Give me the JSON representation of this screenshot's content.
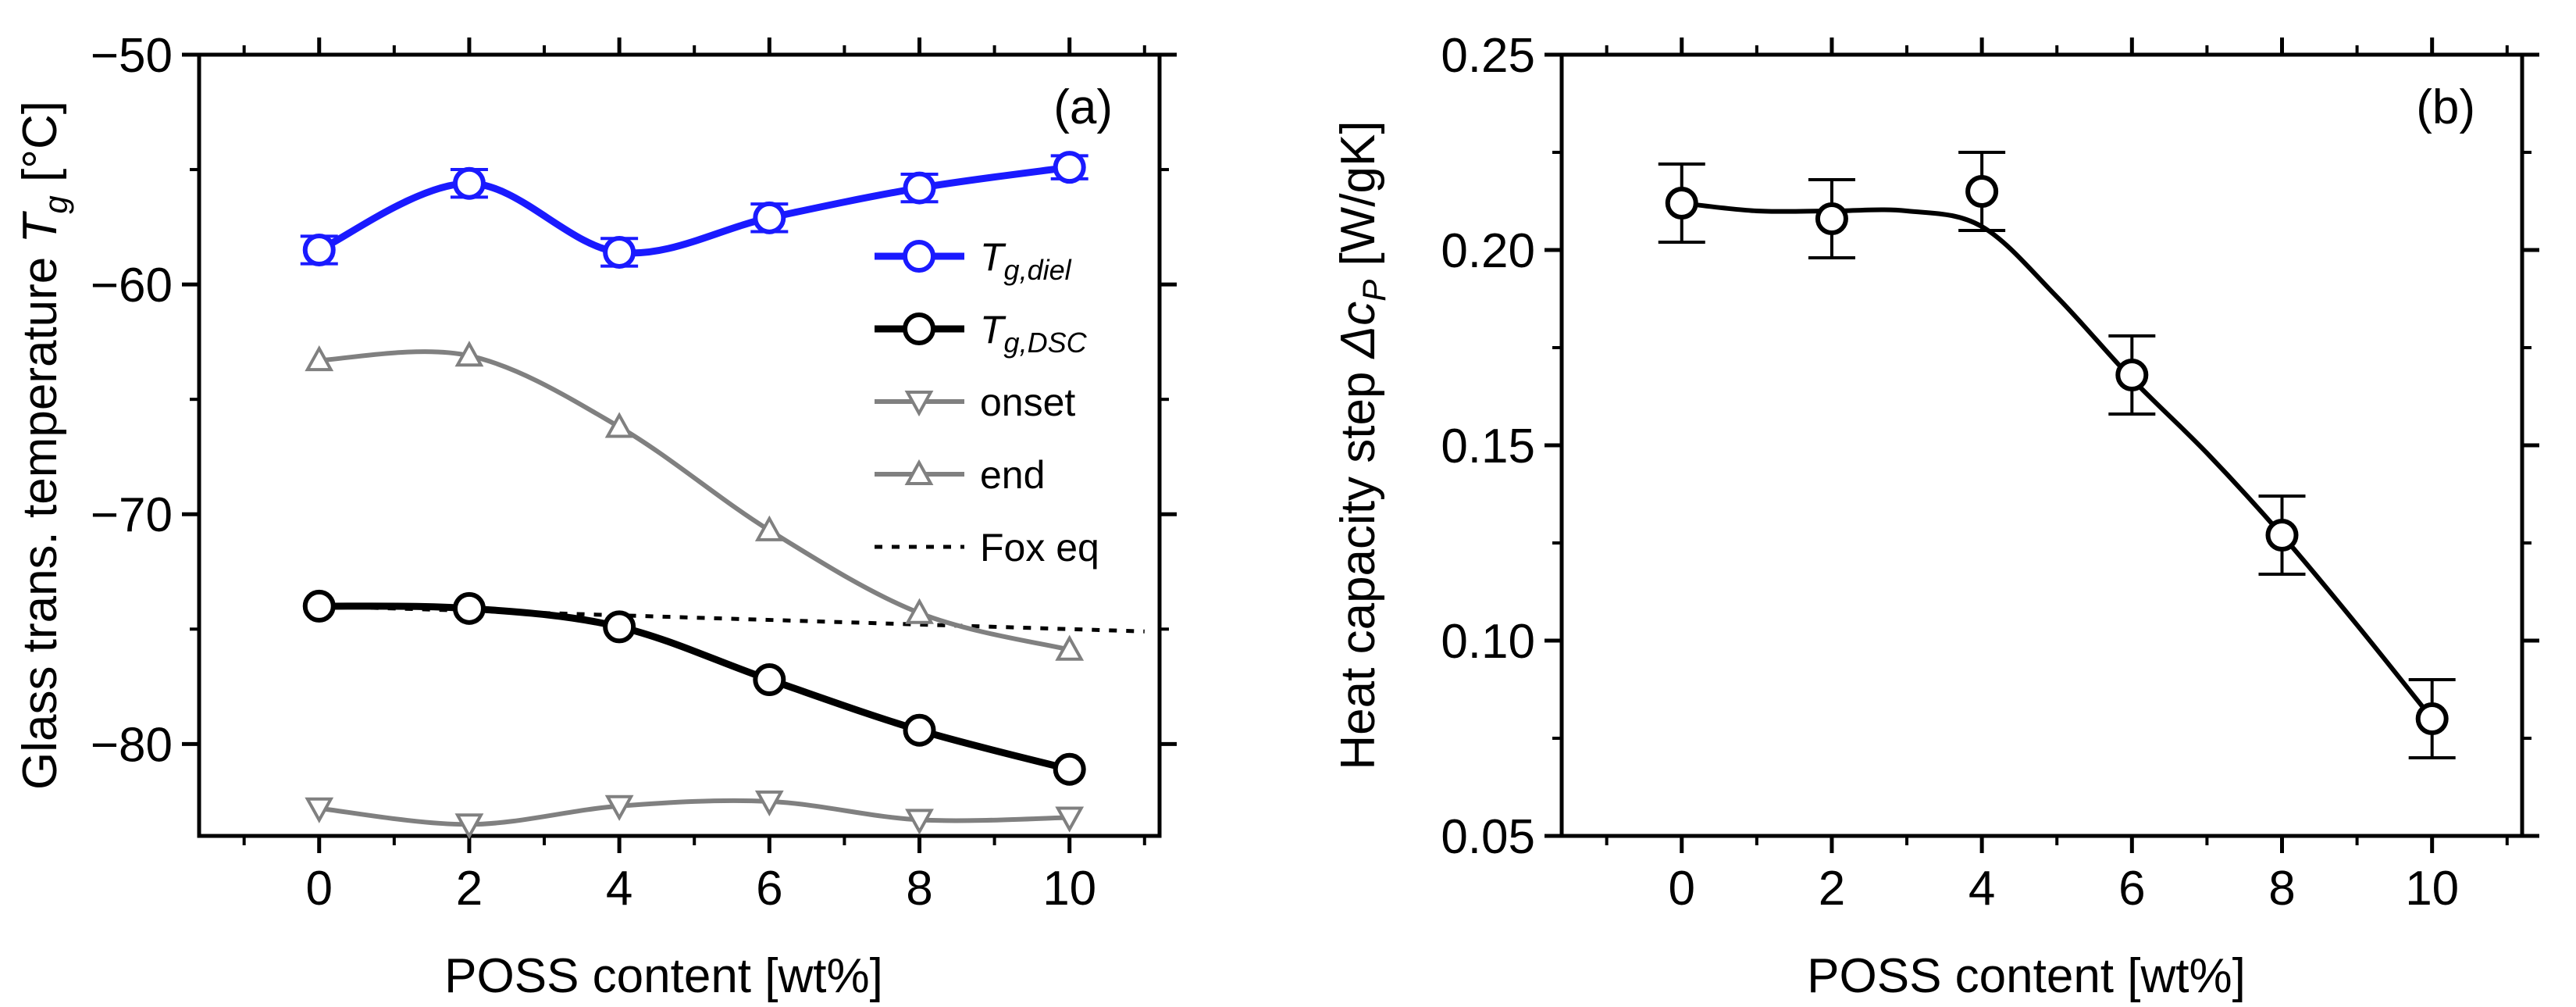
{
  "chart_data": [
    {
      "type": "line",
      "panel_label": "(a)",
      "xlabel": "POSS content [wt%]",
      "ylabel": {
        "main": "Glass trans. temperature ",
        "symbol": "T",
        "subscript": "g",
        "unit": " [°C]"
      },
      "x": [
        0,
        2,
        4,
        6,
        8,
        10
      ],
      "xlim": [
        -1.6,
        11.2
      ],
      "ylim": [
        -84,
        -50
      ],
      "xticks": [
        0,
        2,
        4,
        6,
        8,
        10
      ],
      "xtick_labels": [
        "0",
        "2",
        "4",
        "6",
        "8",
        "10"
      ],
      "yticks": [
        -80,
        -70,
        -60,
        -50
      ],
      "ytick_labels": [
        "−80",
        "−70",
        "−60",
        "−50"
      ],
      "series": [
        {
          "name": "T_g,diel",
          "legend_symbol": "T",
          "legend_subscript": "g,diel",
          "color": "#1a1aff",
          "marker": "circle",
          "values": [
            -58.5,
            -55.6,
            -58.6,
            -57.1,
            -55.8,
            -54.9
          ],
          "errors": [
            0.6,
            0.6,
            0.6,
            0.6,
            0.6,
            0.5
          ]
        },
        {
          "name": "T_g,DSC",
          "legend_symbol": "T",
          "legend_subscript": "g,DSC",
          "color": "#000000",
          "marker": "circle",
          "values": [
            -74.0,
            -74.1,
            -74.9,
            -77.2,
            -79.4,
            -81.1
          ]
        },
        {
          "name": "onset",
          "legend_label": "onset",
          "color": "#808080",
          "marker": "triangle-down",
          "values": [
            -82.8,
            -83.5,
            -82.7,
            -82.5,
            -83.3,
            -83.2
          ]
        },
        {
          "name": "end",
          "legend_label": "end",
          "color": "#808080",
          "marker": "triangle-up",
          "values": [
            -63.3,
            -63.1,
            -66.2,
            -70.7,
            -74.3,
            -75.9
          ]
        },
        {
          "name": "Fox eq",
          "legend_label": "Fox eq",
          "color": "#000000",
          "style": "dotted",
          "x": [
            0,
            11
          ],
          "values": [
            -74.0,
            -75.1
          ]
        }
      ]
    },
    {
      "type": "scatter",
      "panel_label": "(b)",
      "xlabel": "POSS content [wt%]",
      "ylabel": {
        "main": "Heat capacity step ",
        "symbol": "Δc",
        "subscript": "P",
        "unit": " [W/gK]"
      },
      "x": [
        0,
        2,
        4,
        6,
        8,
        10
      ],
      "xlim": [
        -1.6,
        11.2
      ],
      "ylim": [
        0.05,
        0.25
      ],
      "xticks": [
        0,
        2,
        4,
        6,
        8,
        10
      ],
      "xtick_labels": [
        "0",
        "2",
        "4",
        "6",
        "8",
        "10"
      ],
      "yticks": [
        0.05,
        0.1,
        0.15,
        0.2,
        0.25
      ],
      "ytick_labels": [
        "0.05",
        "0.10",
        "0.15",
        "0.20",
        "0.25"
      ],
      "series": [
        {
          "name": "Delta c_P",
          "color": "#000000",
          "marker": "circle",
          "values": [
            0.212,
            0.208,
            0.215,
            0.168,
            0.127,
            0.08
          ],
          "errors": [
            0.01,
            0.01,
            0.01,
            0.01,
            0.01,
            0.01
          ]
        }
      ],
      "fit": {
        "x": [
          0,
          1,
          2,
          3,
          4,
          5,
          6,
          7,
          8,
          9,
          10
        ],
        "values": [
          0.212,
          0.21,
          0.21,
          0.21,
          0.206,
          0.188,
          0.167,
          0.148,
          0.127,
          0.104,
          0.08
        ]
      }
    }
  ]
}
